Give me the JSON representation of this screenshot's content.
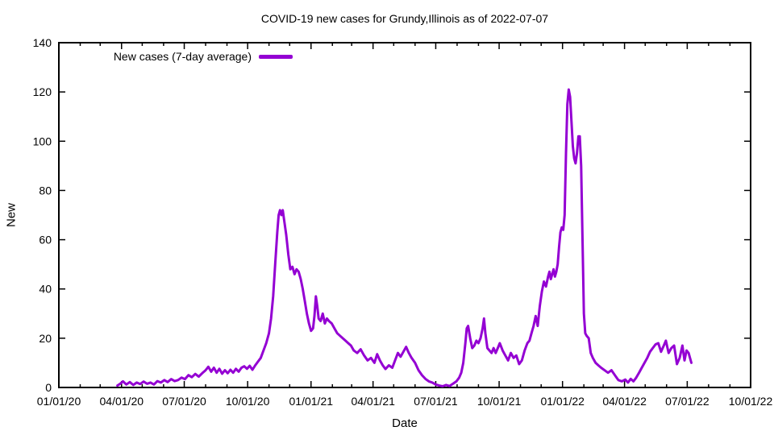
{
  "colors": {
    "line": "#9400d3",
    "axis": "#000000",
    "text": "#000000",
    "background": "#ffffff"
  },
  "chart_data": {
    "type": "line",
    "title": "COVID-19 new cases for Grundy,Illinois as of 2022-07-07",
    "xlabel": "Date",
    "ylabel": "New",
    "ylim": [
      0,
      140
    ],
    "ytick_step": 20,
    "grid": false,
    "x_range": [
      "2020-01-01",
      "2022-10-01"
    ],
    "xticks": [
      {
        "date": "2020-01-01",
        "label": "01/01/20"
      },
      {
        "date": "2020-04-01",
        "label": "04/01/20"
      },
      {
        "date": "2020-07-01",
        "label": "07/01/20"
      },
      {
        "date": "2020-10-01",
        "label": "10/01/20"
      },
      {
        "date": "2021-01-01",
        "label": "01/01/21"
      },
      {
        "date": "2021-04-01",
        "label": "04/01/21"
      },
      {
        "date": "2021-07-01",
        "label": "07/01/21"
      },
      {
        "date": "2021-10-01",
        "label": "10/01/21"
      },
      {
        "date": "2022-01-01",
        "label": "01/01/22"
      },
      {
        "date": "2022-04-01",
        "label": "04/01/22"
      },
      {
        "date": "2022-07-01",
        "label": "07/01/22"
      },
      {
        "date": "2022-10-01",
        "label": "10/01/22"
      }
    ],
    "minor_xtick_interval": "month",
    "legend": {
      "position": "top-left-inside",
      "entries": [
        {
          "label": "New cases (7-day average)",
          "color": "#9400d3"
        }
      ]
    },
    "line_color": "#9400d3",
    "line_width": 3,
    "series": [
      {
        "name": "New cases (7-day average)",
        "points": [
          [
            "2020-03-26",
            0.8
          ],
          [
            "2020-03-30",
            1.5
          ],
          [
            "2020-04-03",
            2.5
          ],
          [
            "2020-04-08",
            1.2
          ],
          [
            "2020-04-13",
            2.2
          ],
          [
            "2020-04-18",
            1.0
          ],
          [
            "2020-04-23",
            2.0
          ],
          [
            "2020-04-28",
            1.4
          ],
          [
            "2020-05-03",
            2.4
          ],
          [
            "2020-05-08",
            1.5
          ],
          [
            "2020-05-13",
            2.0
          ],
          [
            "2020-05-18",
            1.2
          ],
          [
            "2020-05-23",
            2.6
          ],
          [
            "2020-05-28",
            2.0
          ],
          [
            "2020-06-02",
            3.0
          ],
          [
            "2020-06-07",
            2.2
          ],
          [
            "2020-06-12",
            3.4
          ],
          [
            "2020-06-17",
            2.6
          ],
          [
            "2020-06-22",
            3.0
          ],
          [
            "2020-06-27",
            4.0
          ],
          [
            "2020-07-02",
            3.4
          ],
          [
            "2020-07-07",
            5.0
          ],
          [
            "2020-07-12",
            4.2
          ],
          [
            "2020-07-17",
            5.5
          ],
          [
            "2020-07-22",
            4.4
          ],
          [
            "2020-07-27",
            5.8
          ],
          [
            "2020-08-01",
            7.0
          ],
          [
            "2020-08-05",
            8.4
          ],
          [
            "2020-08-09",
            6.4
          ],
          [
            "2020-08-13",
            8.0
          ],
          [
            "2020-08-17",
            6.0
          ],
          [
            "2020-08-21",
            7.6
          ],
          [
            "2020-08-25",
            5.6
          ],
          [
            "2020-08-29",
            7.0
          ],
          [
            "2020-09-02",
            5.8
          ],
          [
            "2020-09-06",
            7.2
          ],
          [
            "2020-09-10",
            6.0
          ],
          [
            "2020-09-14",
            7.6
          ],
          [
            "2020-09-18",
            6.4
          ],
          [
            "2020-09-22",
            8.0
          ],
          [
            "2020-09-26",
            8.6
          ],
          [
            "2020-09-30",
            7.6
          ],
          [
            "2020-10-04",
            8.8
          ],
          [
            "2020-10-08",
            7.2
          ],
          [
            "2020-10-12",
            9.0
          ],
          [
            "2020-10-16",
            10.5
          ],
          [
            "2020-10-20",
            12
          ],
          [
            "2020-10-24",
            15
          ],
          [
            "2020-10-28",
            18
          ],
          [
            "2020-11-01",
            22
          ],
          [
            "2020-11-04",
            28
          ],
          [
            "2020-11-07",
            37
          ],
          [
            "2020-11-10",
            50
          ],
          [
            "2020-11-13",
            63
          ],
          [
            "2020-11-15",
            70
          ],
          [
            "2020-11-17",
            72
          ],
          [
            "2020-11-19",
            70
          ],
          [
            "2020-11-21",
            72
          ],
          [
            "2020-11-23",
            68
          ],
          [
            "2020-11-26",
            62
          ],
          [
            "2020-11-29",
            54
          ],
          [
            "2020-12-02",
            48
          ],
          [
            "2020-12-05",
            49
          ],
          [
            "2020-12-08",
            46
          ],
          [
            "2020-12-11",
            48
          ],
          [
            "2020-12-14",
            47
          ],
          [
            "2020-12-17",
            44
          ],
          [
            "2020-12-20",
            40
          ],
          [
            "2020-12-23",
            35
          ],
          [
            "2020-12-26",
            30
          ],
          [
            "2020-12-29",
            26
          ],
          [
            "2021-01-01",
            23
          ],
          [
            "2021-01-04",
            24
          ],
          [
            "2021-01-06",
            29
          ],
          [
            "2021-01-08",
            37
          ],
          [
            "2021-01-10",
            33
          ],
          [
            "2021-01-12",
            28
          ],
          [
            "2021-01-15",
            27
          ],
          [
            "2021-01-18",
            30
          ],
          [
            "2021-01-21",
            26
          ],
          [
            "2021-01-24",
            28
          ],
          [
            "2021-01-27",
            27
          ],
          [
            "2021-01-31",
            26
          ],
          [
            "2021-02-04",
            24
          ],
          [
            "2021-02-08",
            22
          ],
          [
            "2021-02-12",
            21
          ],
          [
            "2021-02-16",
            20
          ],
          [
            "2021-02-20",
            19
          ],
          [
            "2021-02-24",
            18
          ],
          [
            "2021-02-28",
            17
          ],
          [
            "2021-03-04",
            15
          ],
          [
            "2021-03-09",
            14
          ],
          [
            "2021-03-14",
            15.5
          ],
          [
            "2021-03-19",
            13
          ],
          [
            "2021-03-24",
            11
          ],
          [
            "2021-03-29",
            12
          ],
          [
            "2021-04-03",
            10
          ],
          [
            "2021-04-07",
            13.5
          ],
          [
            "2021-04-11",
            11
          ],
          [
            "2021-04-15",
            9
          ],
          [
            "2021-04-19",
            7.5
          ],
          [
            "2021-04-24",
            9
          ],
          [
            "2021-04-29",
            8
          ],
          [
            "2021-05-03",
            11
          ],
          [
            "2021-05-07",
            14
          ],
          [
            "2021-05-11",
            12.5
          ],
          [
            "2021-05-15",
            14.5
          ],
          [
            "2021-05-19",
            16.5
          ],
          [
            "2021-05-23",
            14
          ],
          [
            "2021-05-27",
            12
          ],
          [
            "2021-06-01",
            10
          ],
          [
            "2021-06-06",
            7
          ],
          [
            "2021-06-11",
            5
          ],
          [
            "2021-06-16",
            3.5
          ],
          [
            "2021-06-21",
            2.5
          ],
          [
            "2021-06-26",
            2
          ],
          [
            "2021-07-01",
            1.2
          ],
          [
            "2021-07-06",
            0.8
          ],
          [
            "2021-07-11",
            0.5
          ],
          [
            "2021-07-16",
            1
          ],
          [
            "2021-07-21",
            0.6
          ],
          [
            "2021-07-26",
            1.5
          ],
          [
            "2021-07-31",
            2.5
          ],
          [
            "2021-08-04",
            4
          ],
          [
            "2021-08-07",
            6
          ],
          [
            "2021-08-10",
            10
          ],
          [
            "2021-08-13",
            18
          ],
          [
            "2021-08-15",
            24
          ],
          [
            "2021-08-17",
            25
          ],
          [
            "2021-08-20",
            20
          ],
          [
            "2021-08-23",
            16
          ],
          [
            "2021-08-26",
            17
          ],
          [
            "2021-08-29",
            19
          ],
          [
            "2021-09-01",
            18
          ],
          [
            "2021-09-04",
            20
          ],
          [
            "2021-09-07",
            24
          ],
          [
            "2021-09-09",
            28
          ],
          [
            "2021-09-11",
            22
          ],
          [
            "2021-09-14",
            16
          ],
          [
            "2021-09-17",
            15
          ],
          [
            "2021-09-20",
            14
          ],
          [
            "2021-09-23",
            16
          ],
          [
            "2021-09-26",
            14
          ],
          [
            "2021-09-29",
            16
          ],
          [
            "2021-10-02",
            18
          ],
          [
            "2021-10-06",
            15
          ],
          [
            "2021-10-10",
            13
          ],
          [
            "2021-10-14",
            11
          ],
          [
            "2021-10-18",
            14
          ],
          [
            "2021-10-22",
            12
          ],
          [
            "2021-10-26",
            13
          ],
          [
            "2021-10-30",
            9.5
          ],
          [
            "2021-11-03",
            11
          ],
          [
            "2021-11-07",
            15
          ],
          [
            "2021-11-11",
            18
          ],
          [
            "2021-11-14",
            19
          ],
          [
            "2021-11-17",
            22
          ],
          [
            "2021-11-20",
            25
          ],
          [
            "2021-11-23",
            29
          ],
          [
            "2021-11-26",
            25
          ],
          [
            "2021-11-29",
            33
          ],
          [
            "2021-12-02",
            39
          ],
          [
            "2021-12-05",
            43
          ],
          [
            "2021-12-08",
            41
          ],
          [
            "2021-12-11",
            45
          ],
          [
            "2021-12-13",
            47
          ],
          [
            "2021-12-15",
            44
          ],
          [
            "2021-12-17",
            46
          ],
          [
            "2021-12-19",
            48
          ],
          [
            "2021-12-21",
            45
          ],
          [
            "2021-12-23",
            47
          ],
          [
            "2021-12-25",
            50
          ],
          [
            "2021-12-27",
            57
          ],
          [
            "2021-12-29",
            63
          ],
          [
            "2021-12-31",
            65
          ],
          [
            "2022-01-02",
            64
          ],
          [
            "2022-01-04",
            70
          ],
          [
            "2022-01-06",
            95
          ],
          [
            "2022-01-08",
            115
          ],
          [
            "2022-01-10",
            121
          ],
          [
            "2022-01-12",
            118
          ],
          [
            "2022-01-14",
            108
          ],
          [
            "2022-01-16",
            98
          ],
          [
            "2022-01-18",
            93
          ],
          [
            "2022-01-20",
            91
          ],
          [
            "2022-01-22",
            95
          ],
          [
            "2022-01-24",
            102
          ],
          [
            "2022-01-26",
            102
          ],
          [
            "2022-01-28",
            90
          ],
          [
            "2022-01-30",
            60
          ],
          [
            "2022-02-01",
            30
          ],
          [
            "2022-02-03",
            22
          ],
          [
            "2022-02-05",
            21
          ],
          [
            "2022-02-08",
            20
          ],
          [
            "2022-02-11",
            14
          ],
          [
            "2022-02-14",
            12
          ],
          [
            "2022-02-18",
            10
          ],
          [
            "2022-02-22",
            9
          ],
          [
            "2022-02-26",
            8
          ],
          [
            "2022-03-03",
            7
          ],
          [
            "2022-03-08",
            6
          ],
          [
            "2022-03-13",
            7
          ],
          [
            "2022-03-18",
            5
          ],
          [
            "2022-03-23",
            3
          ],
          [
            "2022-03-28",
            2.5
          ],
          [
            "2022-04-02",
            3.2
          ],
          [
            "2022-04-06",
            2
          ],
          [
            "2022-04-10",
            3.5
          ],
          [
            "2022-04-14",
            2.5
          ],
          [
            "2022-04-18",
            4
          ],
          [
            "2022-04-22",
            6
          ],
          [
            "2022-04-26",
            8
          ],
          [
            "2022-04-30",
            10
          ],
          [
            "2022-05-04",
            12
          ],
          [
            "2022-05-08",
            14.5
          ],
          [
            "2022-05-12",
            16
          ],
          [
            "2022-05-16",
            17.5
          ],
          [
            "2022-05-20",
            18
          ],
          [
            "2022-05-24",
            14.5
          ],
          [
            "2022-05-28",
            17
          ],
          [
            "2022-05-31",
            19
          ],
          [
            "2022-06-04",
            14
          ],
          [
            "2022-06-08",
            16
          ],
          [
            "2022-06-12",
            17
          ],
          [
            "2022-06-16",
            9.5
          ],
          [
            "2022-06-20",
            12
          ],
          [
            "2022-06-24",
            17
          ],
          [
            "2022-06-27",
            11
          ],
          [
            "2022-06-30",
            15
          ],
          [
            "2022-07-03",
            14
          ],
          [
            "2022-07-05",
            12
          ],
          [
            "2022-07-07",
            10
          ]
        ]
      }
    ]
  }
}
